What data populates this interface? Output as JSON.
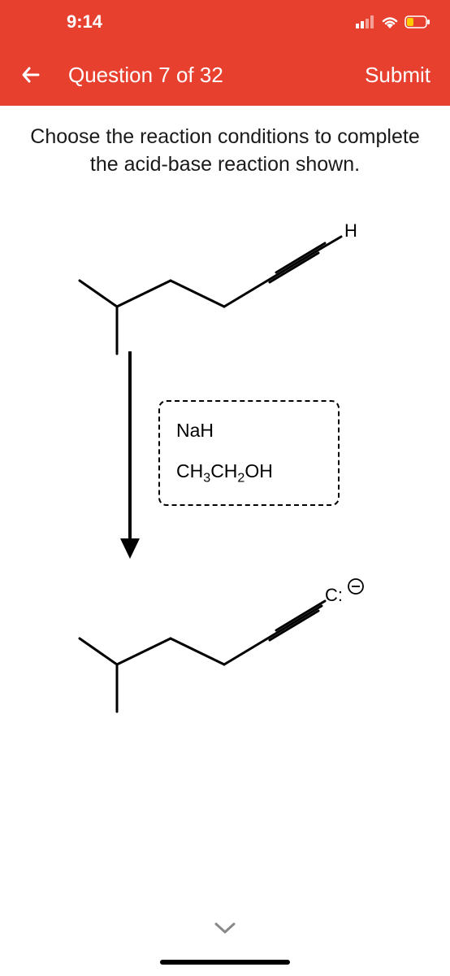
{
  "status_bar": {
    "time": "9:14",
    "bg_color": "#e7402f",
    "text_color": "#ffffff"
  },
  "header": {
    "title": "Question 7 of 32",
    "submit_label": "Submit",
    "bg_color": "#e7402f"
  },
  "prompt": "Choose the reaction conditions to complete the acid-base reaction shown.",
  "reagents": {
    "line1": "NaH",
    "line2_html": "CH<sub>3</sub>CH<sub>2</sub>OH"
  },
  "diagram": {
    "top_molecule": {
      "terminal_label": "H",
      "stroke": "#000000",
      "stroke_width": 3
    },
    "bottom_molecule": {
      "terminal_label": "C:",
      "charge": "⊖",
      "stroke": "#000000",
      "stroke_width": 3
    },
    "arrow": {
      "stroke": "#000000",
      "stroke_width": 4
    },
    "reagent_box": {
      "border_color": "#000000",
      "border_style": "dashed",
      "border_radius": 10
    }
  }
}
